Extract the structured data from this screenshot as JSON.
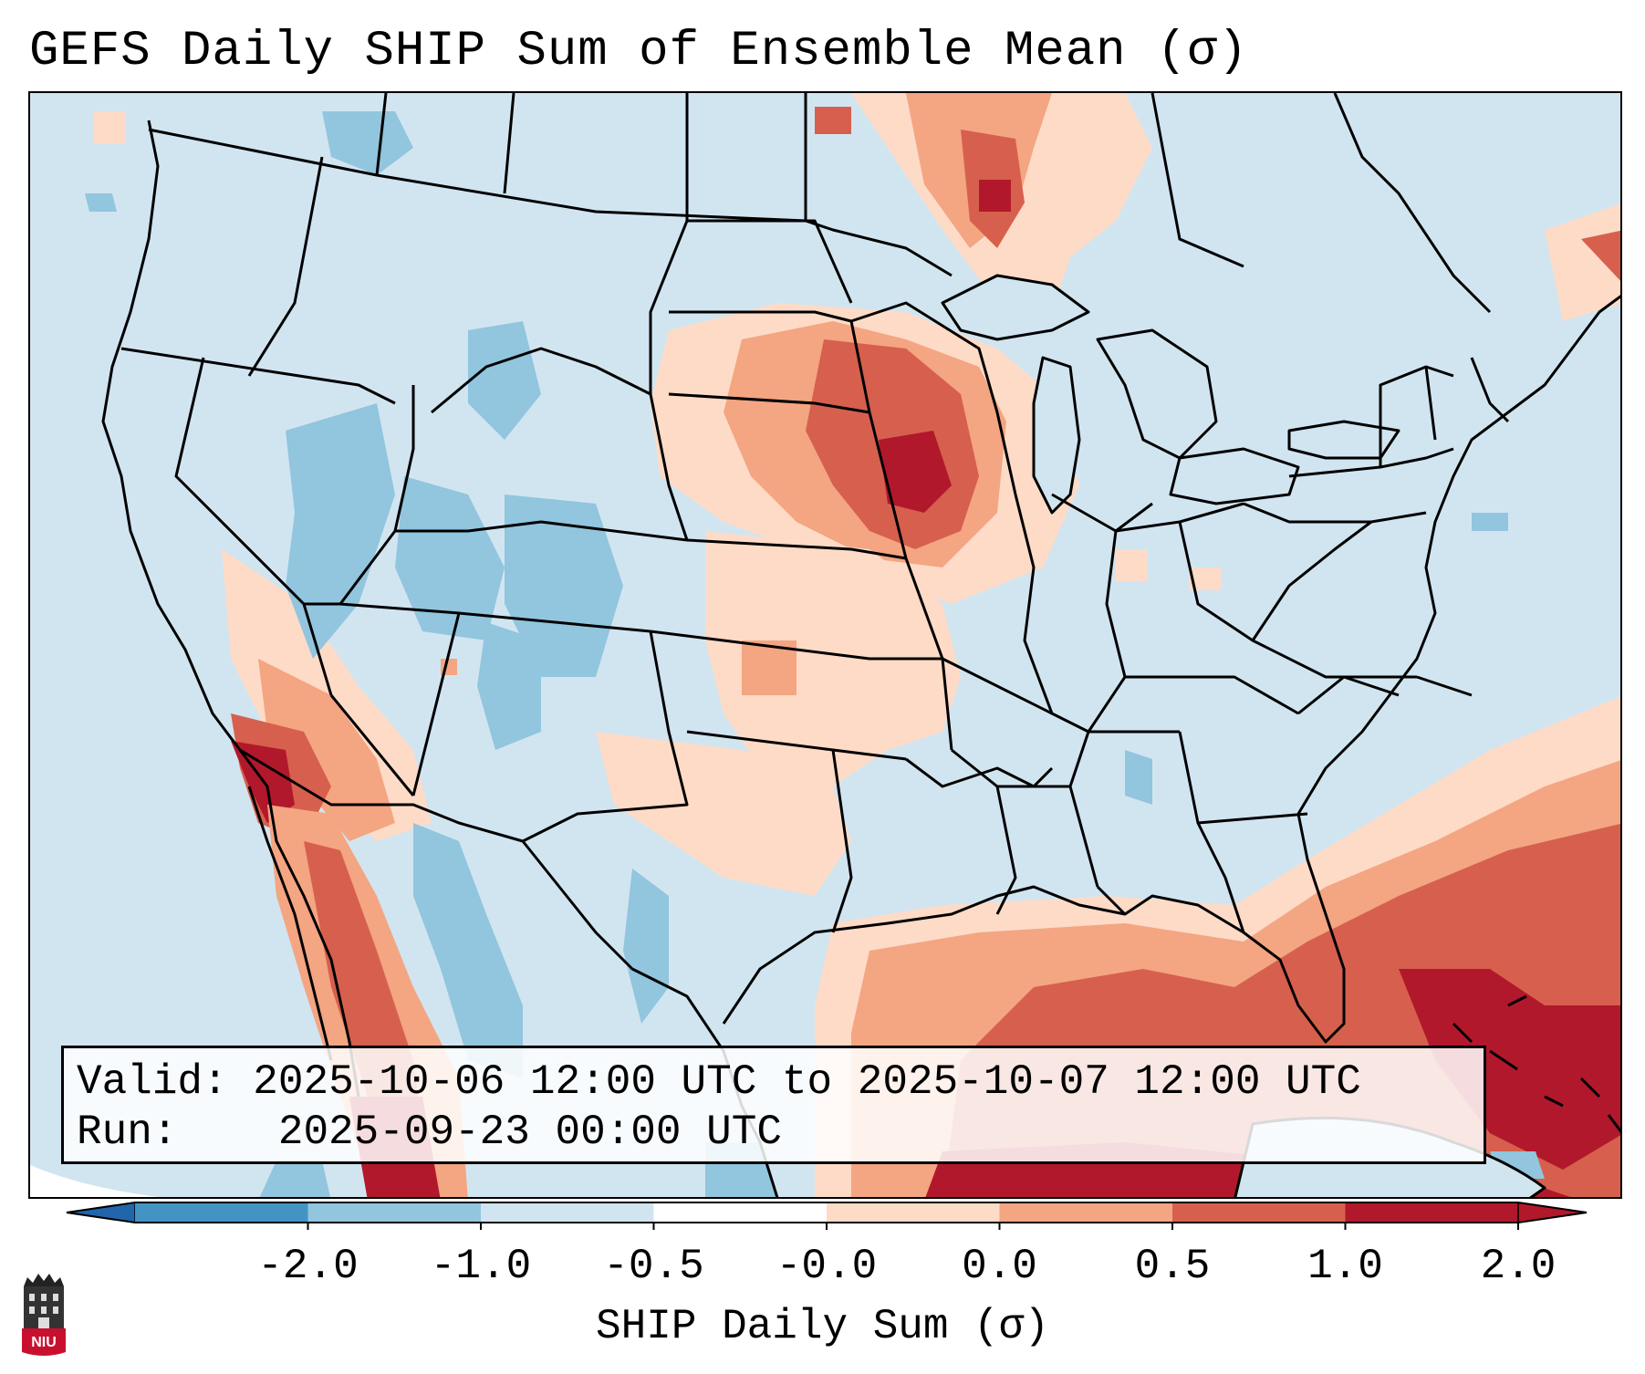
{
  "title": "GEFS Daily SHIP Sum of Ensemble Mean (σ)",
  "info": {
    "valid_label": "Valid:",
    "valid_value": "2025-10-06 12:00 UTC to 2025-10-07 12:00 UTC",
    "run_label": "Run:",
    "run_value": "2025-09-23 00:00 UTC"
  },
  "colorbar": {
    "label": "SHIP Daily Sum (σ)",
    "ticks": [
      "-2.0",
      "-1.0",
      "-0.5",
      "-0.0",
      "0.0",
      "0.5",
      "1.0",
      "2.0"
    ],
    "colors": [
      "#4393c3",
      "#92c5de",
      "#d1e5f0",
      "#ffffff",
      "#fddbc7",
      "#f4a582",
      "#d6604d",
      "#b2182b"
    ],
    "extend": "both",
    "underflow_color": "#2166ac",
    "overflow_color": "#b2182b"
  },
  "map": {
    "projection": "Lambert Conformal",
    "region": "Contiguous United States",
    "background_color": "#d1e5f0",
    "features": [
      "US state borders",
      "coastlines",
      "Great Lakes",
      "Canada",
      "Mexico",
      "Cuba",
      "Bahamas"
    ]
  },
  "logo": {
    "name": "NIU",
    "text": "NIU"
  }
}
